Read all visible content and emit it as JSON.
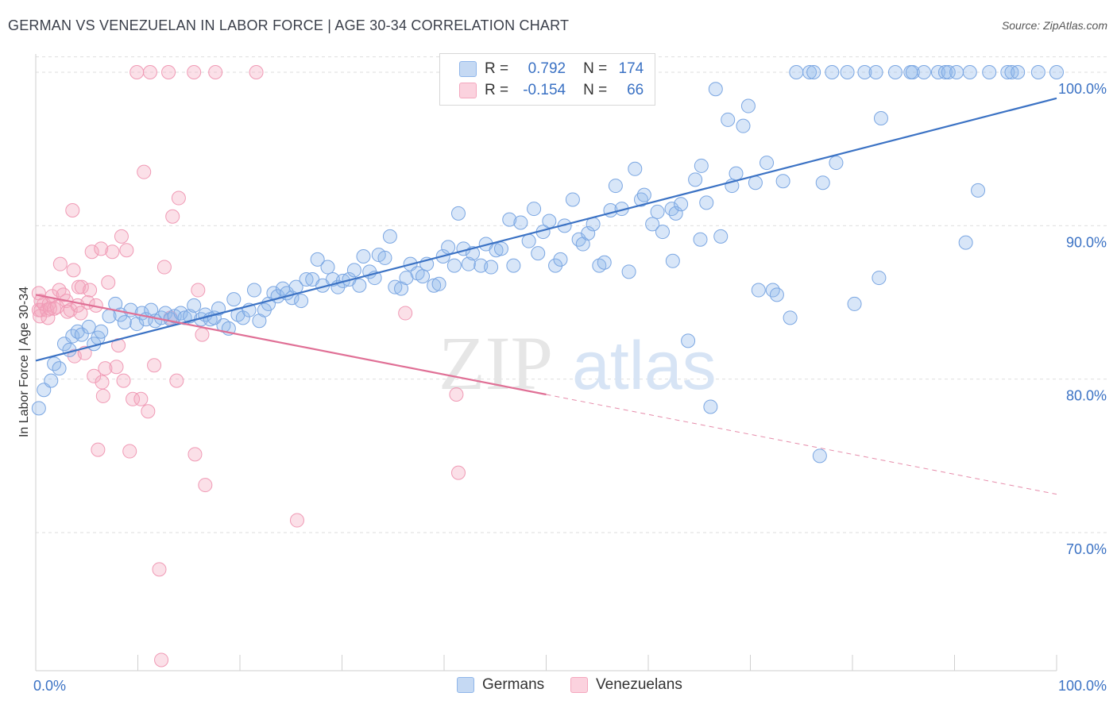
{
  "header": {
    "title": "GERMAN VS VENEZUELAN IN LABOR FORCE | AGE 30-34 CORRELATION CHART",
    "source": "Source: ZipAtlas.com"
  },
  "watermark": {
    "zip": "ZIP",
    "atlas": "atlas"
  },
  "legend": {
    "r_label": "R =",
    "n_label": "N =",
    "items": [
      {
        "name": "Germans",
        "r": "0.792",
        "n": "174",
        "color": "#8fb6ea"
      },
      {
        "name": "Venezuelans",
        "r": "-0.154",
        "n": "66",
        "color": "#f4a7be"
      }
    ]
  },
  "chart_data": {
    "type": "scatter",
    "ylabel": "In Labor Force | Age 30-34",
    "xlim": [
      0,
      100
    ],
    "ylim": [
      61,
      101.5
    ],
    "x_tick_labels": [
      "0.0%",
      "100.0%"
    ],
    "y_ticks": [
      70,
      80,
      90,
      100
    ],
    "y_tick_labels": [
      "70.0%",
      "80.0%",
      "90.0%",
      "100.0%"
    ],
    "grid": true,
    "colors": {
      "germans": "#3b72c4",
      "venezuelans": "#e07096"
    },
    "series": [
      {
        "name": "Germans",
        "trend": {
          "x": [
            0,
            100
          ],
          "y": [
            81.2,
            98.3
          ],
          "style": "solid"
        },
        "points": [
          [
            0.3,
            78.1
          ],
          [
            0.8,
            79.3
          ],
          [
            1.5,
            79.9
          ],
          [
            1.8,
            81.0
          ],
          [
            2.3,
            80.7
          ],
          [
            2.8,
            82.3
          ],
          [
            3.3,
            81.9
          ],
          [
            3.6,
            82.8
          ],
          [
            4.1,
            83.1
          ],
          [
            4.5,
            82.9
          ],
          [
            5.2,
            83.4
          ],
          [
            5.7,
            82.3
          ],
          [
            6.1,
            82.7
          ],
          [
            6.4,
            83.1
          ],
          [
            7.2,
            84.1
          ],
          [
            7.8,
            84.9
          ],
          [
            8.3,
            84.2
          ],
          [
            8.7,
            83.7
          ],
          [
            9.3,
            84.5
          ],
          [
            9.9,
            83.6
          ],
          [
            10.4,
            84.3
          ],
          [
            10.8,
            83.9
          ],
          [
            11.3,
            84.5
          ],
          [
            11.7,
            83.8
          ],
          [
            12.3,
            84.0
          ],
          [
            12.7,
            84.3
          ],
          [
            13.2,
            83.9
          ],
          [
            13.6,
            84.1
          ],
          [
            14.2,
            84.3
          ],
          [
            14.6,
            84.0
          ],
          [
            15.1,
            84.1
          ],
          [
            15.5,
            84.8
          ],
          [
            16.2,
            83.9
          ],
          [
            16.6,
            84.2
          ],
          [
            17.1,
            83.9
          ],
          [
            17.5,
            84.0
          ],
          [
            17.9,
            84.6
          ],
          [
            18.4,
            83.5
          ],
          [
            18.9,
            83.3
          ],
          [
            19.4,
            85.2
          ],
          [
            19.8,
            84.2
          ],
          [
            20.3,
            84.0
          ],
          [
            20.9,
            84.5
          ],
          [
            21.4,
            85.8
          ],
          [
            21.9,
            83.8
          ],
          [
            22.4,
            84.5
          ],
          [
            22.8,
            84.9
          ],
          [
            23.3,
            85.6
          ],
          [
            23.7,
            85.4
          ],
          [
            24.2,
            85.9
          ],
          [
            24.6,
            85.6
          ],
          [
            25.1,
            85.3
          ],
          [
            25.5,
            86.0
          ],
          [
            26.0,
            85.1
          ],
          [
            26.5,
            86.5
          ],
          [
            27.1,
            86.5
          ],
          [
            27.6,
            87.8
          ],
          [
            28.1,
            86.1
          ],
          [
            28.6,
            87.3
          ],
          [
            29.1,
            86.5
          ],
          [
            29.6,
            86.0
          ],
          [
            30.1,
            86.4
          ],
          [
            30.7,
            86.5
          ],
          [
            31.2,
            87.1
          ],
          [
            31.7,
            86.1
          ],
          [
            32.1,
            88.0
          ],
          [
            32.7,
            87.0
          ],
          [
            33.2,
            86.6
          ],
          [
            33.6,
            88.1
          ],
          [
            34.2,
            87.9
          ],
          [
            34.7,
            89.3
          ],
          [
            35.2,
            86.0
          ],
          [
            35.8,
            85.9
          ],
          [
            36.3,
            86.6
          ],
          [
            36.7,
            87.5
          ],
          [
            37.4,
            86.9
          ],
          [
            37.9,
            86.7
          ],
          [
            38.3,
            87.5
          ],
          [
            39.0,
            86.1
          ],
          [
            39.5,
            86.2
          ],
          [
            39.9,
            88.0
          ],
          [
            40.4,
            88.6
          ],
          [
            41.0,
            87.4
          ],
          [
            41.4,
            90.8
          ],
          [
            41.9,
            88.5
          ],
          [
            42.4,
            87.5
          ],
          [
            42.8,
            88.2
          ],
          [
            43.6,
            87.4
          ],
          [
            44.1,
            88.8
          ],
          [
            44.6,
            87.3
          ],
          [
            45.1,
            88.4
          ],
          [
            45.6,
            88.5
          ],
          [
            46.4,
            90.4
          ],
          [
            46.8,
            87.4
          ],
          [
            47.5,
            90.2
          ],
          [
            48.3,
            89.0
          ],
          [
            48.8,
            91.1
          ],
          [
            49.2,
            88.2
          ],
          [
            49.7,
            89.6
          ],
          [
            50.3,
            90.3
          ],
          [
            50.9,
            87.4
          ],
          [
            51.4,
            87.8
          ],
          [
            51.8,
            90.0
          ],
          [
            52.6,
            91.7
          ],
          [
            53.2,
            89.1
          ],
          [
            53.6,
            88.8
          ],
          [
            54.1,
            89.5
          ],
          [
            54.6,
            90.1
          ],
          [
            55.2,
            87.4
          ],
          [
            55.7,
            87.6
          ],
          [
            56.3,
            91.0
          ],
          [
            56.8,
            92.6
          ],
          [
            57.4,
            91.1
          ],
          [
            58.1,
            87.0
          ],
          [
            58.7,
            93.7
          ],
          [
            59.3,
            91.7
          ],
          [
            59.6,
            92.0
          ],
          [
            60.4,
            90.1
          ],
          [
            60.9,
            90.9
          ],
          [
            61.4,
            89.6
          ],
          [
            62.3,
            91.1
          ],
          [
            62.7,
            90.8
          ],
          [
            62.4,
            87.7
          ],
          [
            63.2,
            91.4
          ],
          [
            63.9,
            82.5
          ],
          [
            64.6,
            93.0
          ],
          [
            65.1,
            89.1
          ],
          [
            65.2,
            93.9
          ],
          [
            65.7,
            91.5
          ],
          [
            66.1,
            78.2
          ],
          [
            66.6,
            98.9
          ],
          [
            67.1,
            89.3
          ],
          [
            67.8,
            96.9
          ],
          [
            68.2,
            92.6
          ],
          [
            68.6,
            93.4
          ],
          [
            69.3,
            96.5
          ],
          [
            69.8,
            97.8
          ],
          [
            70.5,
            92.8
          ],
          [
            70.8,
            85.8
          ],
          [
            71.6,
            94.1
          ],
          [
            72.2,
            85.8
          ],
          [
            72.6,
            85.5
          ],
          [
            73.2,
            92.9
          ],
          [
            73.9,
            84.0
          ],
          [
            74.5,
            100.0
          ],
          [
            75.8,
            100.0
          ],
          [
            76.2,
            100.0
          ],
          [
            76.8,
            75.0
          ],
          [
            77.1,
            92.8
          ],
          [
            78.0,
            100.0
          ],
          [
            78.4,
            94.1
          ],
          [
            79.5,
            100.0
          ],
          [
            80.2,
            84.9
          ],
          [
            81.2,
            100.0
          ],
          [
            82.3,
            100.0
          ],
          [
            82.6,
            86.6
          ],
          [
            82.8,
            97.0
          ],
          [
            84.2,
            100.0
          ],
          [
            85.7,
            100.0
          ],
          [
            85.9,
            100.0
          ],
          [
            87.0,
            100.0
          ],
          [
            88.4,
            100.0
          ],
          [
            89.1,
            100.0
          ],
          [
            89.4,
            100.0
          ],
          [
            90.2,
            100.0
          ],
          [
            91.1,
            88.9
          ],
          [
            91.5,
            100.0
          ],
          [
            92.3,
            92.3
          ],
          [
            93.4,
            100.0
          ],
          [
            95.2,
            100.0
          ],
          [
            95.6,
            100.0
          ],
          [
            96.2,
            100.0
          ],
          [
            98.2,
            100.0
          ],
          [
            100.0,
            100.0
          ]
        ]
      },
      {
        "name": "Venezuelans",
        "trend": {
          "x": [
            0,
            50
          ],
          "y": [
            85.5,
            79.0
          ],
          "style": "solid",
          "dashed_extension": {
            "x": [
              50,
              100
            ],
            "y": [
              79.0,
              72.5
            ]
          }
        },
        "points": [
          [
            0.3,
            85.6
          ],
          [
            0.3,
            84.5
          ],
          [
            0.4,
            84.1
          ],
          [
            0.5,
            84.5
          ],
          [
            0.5,
            85.1
          ],
          [
            0.8,
            84.9
          ],
          [
            1.1,
            84.5
          ],
          [
            1.2,
            84.0
          ],
          [
            1.3,
            84.9
          ],
          [
            1.4,
            84.6
          ],
          [
            1.6,
            85.4
          ],
          [
            1.8,
            84.6
          ],
          [
            2.1,
            84.7
          ],
          [
            2.3,
            85.8
          ],
          [
            2.4,
            87.5
          ],
          [
            2.7,
            85.5
          ],
          [
            3.0,
            85.1
          ],
          [
            3.1,
            84.4
          ],
          [
            3.4,
            84.5
          ],
          [
            3.6,
            91.0
          ],
          [
            3.7,
            87.1
          ],
          [
            3.8,
            81.5
          ],
          [
            4.1,
            84.8
          ],
          [
            4.2,
            86.0
          ],
          [
            4.4,
            84.3
          ],
          [
            4.5,
            86.0
          ],
          [
            4.8,
            81.7
          ],
          [
            5.1,
            85.0
          ],
          [
            5.3,
            85.8
          ],
          [
            5.5,
            88.3
          ],
          [
            5.7,
            80.2
          ],
          [
            5.9,
            84.8
          ],
          [
            6.1,
            75.4
          ],
          [
            6.4,
            88.5
          ],
          [
            6.5,
            79.8
          ],
          [
            6.6,
            78.9
          ],
          [
            6.8,
            80.7
          ],
          [
            7.1,
            86.3
          ],
          [
            7.5,
            88.3
          ],
          [
            7.9,
            80.8
          ],
          [
            8.1,
            82.2
          ],
          [
            8.4,
            89.3
          ],
          [
            8.6,
            79.9
          ],
          [
            8.9,
            88.4
          ],
          [
            9.2,
            75.3
          ],
          [
            9.5,
            78.7
          ],
          [
            9.9,
            100.0
          ],
          [
            10.3,
            78.7
          ],
          [
            10.6,
            93.5
          ],
          [
            11.0,
            77.9
          ],
          [
            11.2,
            100.0
          ],
          [
            11.6,
            80.9
          ],
          [
            12.1,
            67.6
          ],
          [
            12.3,
            61.7
          ],
          [
            12.6,
            87.3
          ],
          [
            13.0,
            100.0
          ],
          [
            13.2,
            84.0
          ],
          [
            13.4,
            90.6
          ],
          [
            13.8,
            79.9
          ],
          [
            14.0,
            91.8
          ],
          [
            15.5,
            100.0
          ],
          [
            15.6,
            75.1
          ],
          [
            15.9,
            85.8
          ],
          [
            16.3,
            82.9
          ],
          [
            16.6,
            73.1
          ],
          [
            17.6,
            100.0
          ],
          [
            21.6,
            100.0
          ],
          [
            25.6,
            70.8
          ],
          [
            36.2,
            84.3
          ],
          [
            41.2,
            79.0
          ],
          [
            41.4,
            73.9
          ]
        ]
      }
    ]
  }
}
